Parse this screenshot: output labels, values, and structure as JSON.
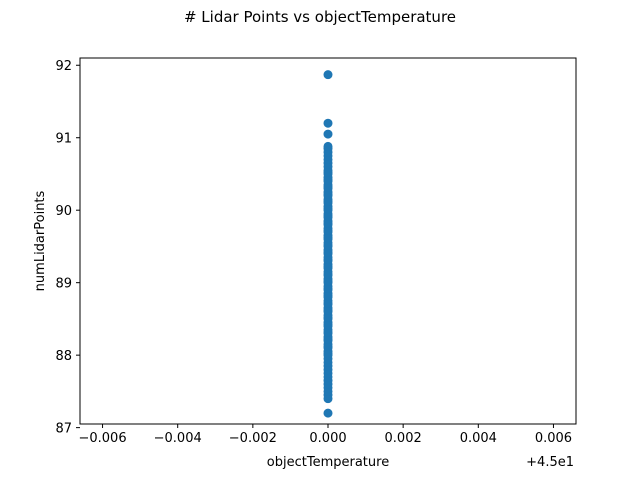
{
  "figure": {
    "title": "# Lidar Points vs objectTemperature"
  },
  "chart_data": {
    "type": "scatter",
    "title": "# Lidar Points vs objectTemperature",
    "xlabel": "objectTemperature",
    "ylabel": "numLidarPoints",
    "x_offset_label": "+4.5e1",
    "xlim": [
      -0.0066,
      0.0066
    ],
    "ylim": [
      87.05,
      92.1
    ],
    "x_ticks": [
      -0.006,
      -0.004,
      -0.002,
      0.0,
      0.002,
      0.004,
      0.006
    ],
    "x_tick_labels": [
      "−0.006",
      "−0.004",
      "−0.002",
      "0.000",
      "0.002",
      "0.004",
      "0.006"
    ],
    "y_ticks": [
      87,
      88,
      89,
      90,
      91,
      92
    ],
    "y_tick_labels": [
      "87",
      "88",
      "89",
      "90",
      "91",
      "92"
    ],
    "grid": false,
    "legend": "none",
    "series": [
      {
        "color": "#1f77b4",
        "x": [
          0,
          0,
          0,
          0,
          0,
          0,
          0,
          0,
          0,
          0,
          0,
          0,
          0,
          0,
          0,
          0,
          0,
          0,
          0,
          0,
          0,
          0,
          0,
          0,
          0,
          0,
          0,
          0,
          0,
          0,
          0,
          0,
          0,
          0,
          0,
          0,
          0,
          0,
          0,
          0,
          0,
          0,
          0,
          0,
          0,
          0,
          0,
          0,
          0,
          0,
          0,
          0,
          0,
          0,
          0,
          0,
          0,
          0,
          0,
          0,
          0,
          0,
          0,
          0,
          0,
          0,
          0,
          0,
          0,
          0,
          0,
          0,
          0,
          0,
          0,
          0,
          0,
          0,
          0,
          0,
          0,
          0,
          0,
          0,
          0,
          0,
          0,
          0,
          0,
          0,
          0,
          0,
          0,
          0,
          0,
          0,
          0,
          0,
          0,
          0,
          0
        ],
        "y": [
          87.2,
          87.4,
          87.45,
          87.5,
          87.55,
          87.6,
          87.65,
          87.7,
          87.75,
          87.8,
          87.85,
          87.9,
          87.95,
          88.0,
          88.05,
          88.1,
          88.15,
          88.2,
          88.25,
          88.3,
          88.35,
          88.4,
          88.45,
          88.5,
          88.55,
          88.6,
          88.65,
          88.7,
          88.75,
          88.8,
          88.85,
          88.9,
          88.95,
          89.0,
          89.05,
          89.1,
          89.15,
          89.2,
          89.25,
          89.3,
          89.35,
          89.4,
          89.45,
          89.5,
          89.55,
          89.6,
          89.65,
          89.7,
          89.75,
          89.8,
          89.85,
          89.9,
          89.95,
          90.0,
          90.05,
          90.1,
          90.15,
          90.2,
          90.25,
          90.3,
          90.35,
          90.4,
          90.45,
          90.5,
          90.55,
          90.6,
          90.65,
          90.7,
          90.75,
          90.8,
          90.85,
          90.88,
          91.05,
          91.2,
          91.87,
          88.02,
          88.12,
          88.22,
          88.32,
          88.42,
          88.52,
          88.62,
          88.72,
          88.82,
          88.92,
          89.02,
          89.12,
          89.22,
          89.32,
          89.42,
          89.52,
          89.62,
          89.72,
          89.82,
          89.92,
          90.02,
          90.12,
          90.22,
          90.32,
          90.42,
          90.52
        ]
      }
    ]
  }
}
